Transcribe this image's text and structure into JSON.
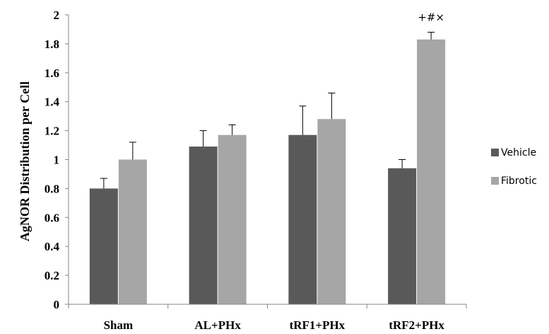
{
  "chart_data": {
    "type": "bar",
    "title": "",
    "xlabel": "",
    "ylabel": "AgNOR Distribution per Cell",
    "ylim": [
      0,
      2
    ],
    "yticks": [
      "0",
      "0.2",
      "0.4",
      "0.6",
      "0.8",
      "1",
      "1.2",
      "1.4",
      "1.6",
      "1.8",
      "2"
    ],
    "categories": [
      "Sham",
      "AL+PHx",
      "tRF1+PHx",
      "tRF2+PHx"
    ],
    "series": [
      {
        "name": "Vehicle",
        "color": "#595959",
        "values": [
          0.8,
          1.09,
          1.17,
          0.94
        ],
        "errors": [
          0.07,
          0.11,
          0.2,
          0.06
        ]
      },
      {
        "name": "Fibrotic",
        "color": "#a6a6a6",
        "values": [
          1.0,
          1.17,
          1.28,
          1.83
        ],
        "errors": [
          0.12,
          0.07,
          0.18,
          0.05
        ]
      }
    ],
    "annotations": [
      {
        "category": "tRF2+PHx",
        "series": "Fibrotic",
        "text": "+#×"
      }
    ],
    "legend": "right",
    "grid": false
  }
}
